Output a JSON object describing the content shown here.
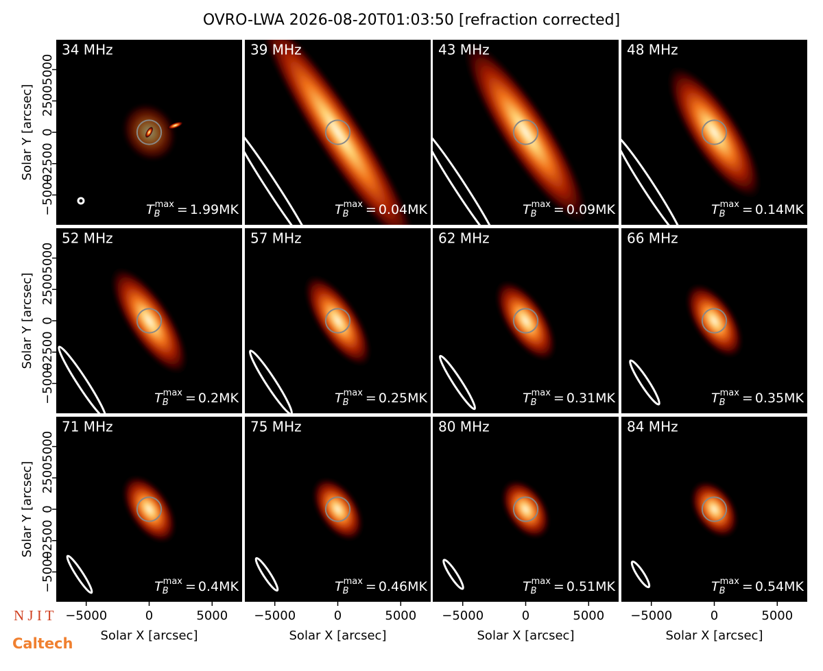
{
  "chart_data": {
    "type": "image-grid",
    "title": "OVRO-LWA 2026-08-20T01:03:50 [refraction corrected]",
    "x_label": "Solar X [arcsec]",
    "y_label": "Solar Y [arcsec]",
    "xlim": [
      -7380,
      7380
    ],
    "ylim": [
      -7380,
      7380
    ],
    "xticks": [
      {
        "value": -5000,
        "label": "−5000"
      },
      0,
      5000
    ],
    "yticks": [
      {
        "value": -5000,
        "label": "−5000"
      },
      {
        "value": -2500,
        "label": "−2500"
      },
      0,
      2500,
      5000
    ],
    "tmax_label": {
      "symbol": "T",
      "sub": "B",
      "sup": "max",
      "sign": "="
    },
    "panels": [
      {
        "freq": "34 MHz",
        "tmax": "1.99MK"
      },
      {
        "freq": "39 MHz",
        "tmax": "0.04MK"
      },
      {
        "freq": "43 MHz",
        "tmax": "0.09MK"
      },
      {
        "freq": "48 MHz",
        "tmax": "0.14MK"
      },
      {
        "freq": "52 MHz",
        "tmax": "0.2MK"
      },
      {
        "freq": "57 MHz",
        "tmax": "0.25MK"
      },
      {
        "freq": "62 MHz",
        "tmax": "0.31MK"
      },
      {
        "freq": "66 MHz",
        "tmax": "0.35MK"
      },
      {
        "freq": "71 MHz",
        "tmax": "0.4MK"
      },
      {
        "freq": "75 MHz",
        "tmax": "0.46MK"
      },
      {
        "freq": "80 MHz",
        "tmax": "0.51MK"
      },
      {
        "freq": "84 MHz",
        "tmax": "0.54MK"
      }
    ],
    "logos": [
      "N J I T",
      "Caltech"
    ]
  }
}
